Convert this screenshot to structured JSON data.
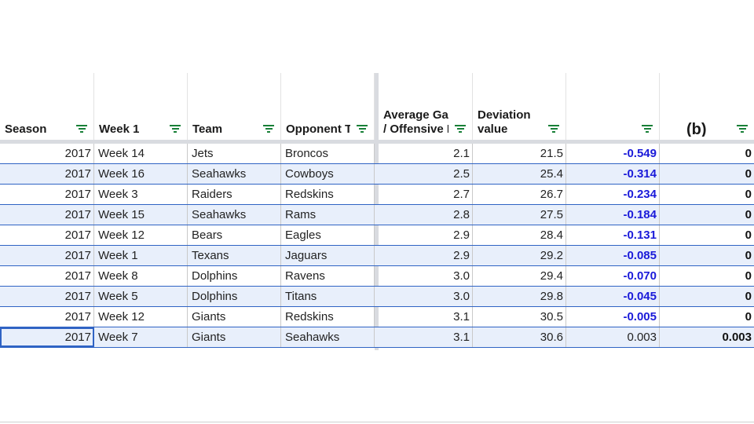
{
  "headers": [
    {
      "label": "Season"
    },
    {
      "label": "Week 1"
    },
    {
      "label": "Team"
    },
    {
      "label": "Opponent Te"
    },
    {
      "label": "Average Gai\n/ Offensive P"
    },
    {
      "label": "Deviation\nvalue"
    },
    {
      "label": ""
    },
    {
      "label": "(b)"
    }
  ],
  "rows": [
    {
      "season": "2017",
      "week": "Week 14",
      "team": "Jets",
      "opponent": "Broncos",
      "avg": "2.1",
      "dev": "21.5",
      "z": "-0.549",
      "b": "0"
    },
    {
      "season": "2017",
      "week": "Week 16",
      "team": "Seahawks",
      "opponent": "Cowboys",
      "avg": "2.5",
      "dev": "25.4",
      "z": "-0.314",
      "b": "0"
    },
    {
      "season": "2017",
      "week": "Week 3",
      "team": "Raiders",
      "opponent": "Redskins",
      "avg": "2.7",
      "dev": "26.7",
      "z": "-0.234",
      "b": "0"
    },
    {
      "season": "2017",
      "week": "Week 15",
      "team": "Seahawks",
      "opponent": "Rams",
      "avg": "2.8",
      "dev": "27.5",
      "z": "-0.184",
      "b": "0"
    },
    {
      "season": "2017",
      "week": "Week 12",
      "team": "Bears",
      "opponent": "Eagles",
      "avg": "2.9",
      "dev": "28.4",
      "z": "-0.131",
      "b": "0"
    },
    {
      "season": "2017",
      "week": "Week 1",
      "team": "Texans",
      "opponent": "Jaguars",
      "avg": "2.9",
      "dev": "29.2",
      "z": "-0.085",
      "b": "0"
    },
    {
      "season": "2017",
      "week": "Week 8",
      "team": "Dolphins",
      "opponent": "Ravens",
      "avg": "3.0",
      "dev": "29.4",
      "z": "-0.070",
      "b": "0"
    },
    {
      "season": "2017",
      "week": "Week 5",
      "team": "Dolphins",
      "opponent": "Titans",
      "avg": "3.0",
      "dev": "29.8",
      "z": "-0.045",
      "b": "0"
    },
    {
      "season": "2017",
      "week": "Week 12",
      "team": "Giants",
      "opponent": "Redskins",
      "avg": "3.1",
      "dev": "30.5",
      "z": "-0.005",
      "b": "0"
    },
    {
      "season": "2017",
      "week": "Week 7",
      "team": "Giants",
      "opponent": "Seahawks",
      "avg": "3.1",
      "dev": "30.6",
      "z": "0.003",
      "b": "0.003"
    }
  ],
  "colors": {
    "negative": "#1a1ad9",
    "filter": "#188038",
    "selection": "#2f63c4",
    "alt_row": "#e8effb"
  },
  "icons": {
    "filter": "filter-icon"
  }
}
